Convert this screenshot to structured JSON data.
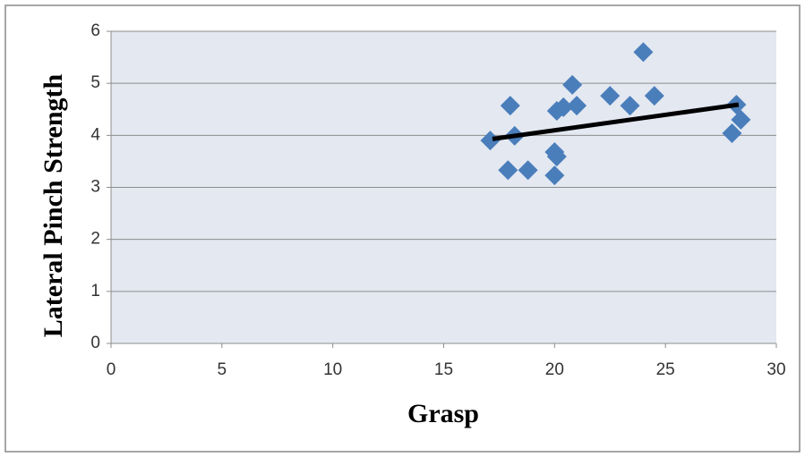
{
  "chart_data": {
    "type": "scatter",
    "x_label": "Grasp",
    "y_label": "Lateral Pinch Strength",
    "xlim": [
      0,
      30
    ],
    "xticks": [
      0,
      5,
      10,
      15,
      20,
      25,
      30
    ],
    "ylim": [
      0,
      6
    ],
    "yticks": [
      0,
      1,
      2,
      3,
      4,
      5,
      6
    ],
    "grid": true,
    "series": [
      {
        "color": "#4a7ebb",
        "x": [
          17.1,
          17.9,
          18.0,
          18.2,
          18.8,
          20.0,
          20.1,
          20.0,
          20.1,
          20.4,
          20.8,
          21.0,
          22.5,
          23.4,
          24.0,
          24.5,
          28.0,
          28.2,
          28.4
        ],
        "values": [
          3.9,
          3.33,
          4.57,
          3.99,
          3.33,
          3.23,
          3.59,
          3.68,
          4.47,
          4.54,
          4.97,
          4.57,
          4.76,
          4.57,
          5.6,
          4.76,
          4.04,
          4.59,
          4.3
        ]
      }
    ],
    "trendline": {
      "color": "#000000",
      "x": [
        17.2,
        28.3
      ],
      "values": [
        3.93,
        4.59
      ]
    }
  }
}
